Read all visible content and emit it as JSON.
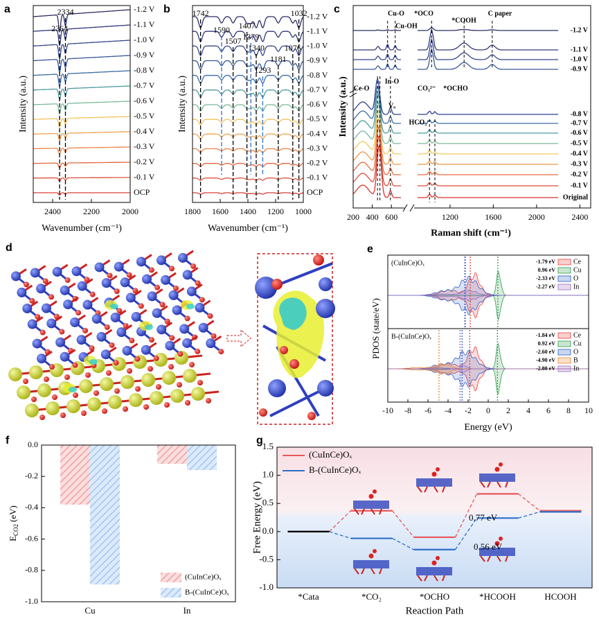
{
  "chart_data": [
    {
      "type": "ir_spectra",
      "panel": "a",
      "xlabel": "Wavenumber (cm⁻¹)",
      "ylabel": "Intensity (a.u.)",
      "xlim": [
        2500,
        2000
      ],
      "xticks": [
        2400,
        2200,
        2000
      ],
      "peaks": [
        2364,
        2334
      ],
      "curves": [
        {
          "name": "-1.2 V",
          "color": "#2c2a66"
        },
        {
          "name": "-1.1 V",
          "color": "#30367a"
        },
        {
          "name": "-1.0 V",
          "color": "#35458c"
        },
        {
          "name": "-0.9 V",
          "color": "#37579a"
        },
        {
          "name": "-0.8 V",
          "color": "#3a6aa6"
        },
        {
          "name": "-0.7 V",
          "color": "#4e9aa3"
        },
        {
          "name": "-0.6 V",
          "color": "#7ab99a"
        },
        {
          "name": "-0.5 V",
          "color": "#f3c35e"
        },
        {
          "name": "-0.4 V",
          "color": "#f0a24f"
        },
        {
          "name": "-0.3 V",
          "color": "#eb8446"
        },
        {
          "name": "-0.2 V",
          "color": "#e4653e"
        },
        {
          "name": "-0.1 V",
          "color": "#de503a"
        },
        {
          "name": "OCP",
          "color": "#d93c36"
        }
      ]
    },
    {
      "type": "ir_spectra",
      "panel": "b",
      "xlabel": "Wavenumber (cm⁻¹)",
      "ylabel": "Intensity (a.u.)",
      "xlim": [
        1800,
        1000
      ],
      "xticks": [
        1800,
        1600,
        1400,
        1200,
        1000
      ],
      "peaks": [
        1742,
        1507,
        1407,
        1340,
        1181,
        1076,
        1032
      ],
      "peaks_alt": [
        1590,
        1379,
        1293
      ],
      "peaks_alt_color": "#2f6fc0",
      "curves": [
        {
          "name": "-1.2 V",
          "color": "#2c2a66"
        },
        {
          "name": "-1.1 V",
          "color": "#30367a"
        },
        {
          "name": "-1.0 V",
          "color": "#35458c"
        },
        {
          "name": "-0.9 V",
          "color": "#37579a"
        },
        {
          "name": "-0.8 V",
          "color": "#3a6aa6"
        },
        {
          "name": "-0.7 V",
          "color": "#4e9aa3"
        },
        {
          "name": "-0.6 V",
          "color": "#7ab99a"
        },
        {
          "name": "-0.5 V",
          "color": "#f3c35e"
        },
        {
          "name": "-0.4 V",
          "color": "#f0a24f"
        },
        {
          "name": "-0.3 V",
          "color": "#eb8446"
        },
        {
          "name": "-0.2 V",
          "color": "#e4653e"
        },
        {
          "name": "-0.1 V",
          "color": "#de503a"
        },
        {
          "name": "OCP",
          "color": "#d93c36"
        }
      ]
    },
    {
      "type": "raman_spectra",
      "panel": "c",
      "xlabel": "Raman shift (cm⁻¹)",
      "ylabel": "Intensity (a.u.)",
      "xlim": [
        200,
        700
      ],
      "x2lim": [
        900,
        2500
      ],
      "xticks": [
        200,
        400,
        600,
        1200,
        1600,
        2000,
        2400
      ],
      "annotations": [
        {
          "text": "Cu-O",
          "color": "#000000"
        },
        {
          "text": "Cu-OH",
          "color": "#000000"
        },
        {
          "text": "*OCO",
          "color": "#2f6fc0"
        },
        {
          "text": "*COOH",
          "color": "#2f6fc0"
        },
        {
          "text": "C paper",
          "color": "#000000"
        },
        {
          "text": "Ce-O",
          "color": "#e8742c"
        },
        {
          "text": "In-O",
          "color": "#000000"
        },
        {
          "text": "CO₃²⁻",
          "color": "#000000"
        },
        {
          "text": "*OCHO",
          "color": "#d8322e"
        },
        {
          "text": "HCO₃⁻",
          "color": "#000000"
        },
        {
          "text": "Vₒ",
          "color": "#e8742c"
        }
      ],
      "curves_top": [
        {
          "name": "-1.2 V",
          "color": "#2c2a66"
        },
        {
          "name": "-1.1 V",
          "color": "#30367a"
        },
        {
          "name": "-1.0 V",
          "color": "#35458c"
        },
        {
          "name": "-0.9 V",
          "color": "#37579a"
        }
      ],
      "curves_bottom": [
        {
          "name": "-0.8 V",
          "color": "#2e3f8f"
        },
        {
          "name": "-0.7 V",
          "color": "#3a6aa8"
        },
        {
          "name": "-0.6 V",
          "color": "#4f9aa0"
        },
        {
          "name": "-0.5 V",
          "color": "#7bb99a"
        },
        {
          "name": "-0.4 V",
          "color": "#f4c75e"
        },
        {
          "name": "-0.3 V",
          "color": "#ee9648"
        },
        {
          "name": "-0.2 V",
          "color": "#e56a3e"
        },
        {
          "name": "-0.1 V",
          "color": "#df4b3a"
        },
        {
          "name": "Original",
          "color": "#d8322e"
        }
      ]
    },
    {
      "type": "structure",
      "panel": "d"
    },
    {
      "type": "pdos",
      "panel": "e",
      "xlabel": "Energy (eV)",
      "ylabel": "PDOS (state/eV)",
      "xlim": [
        -10,
        10
      ],
      "xticks": [
        -10,
        -8,
        -6,
        -4,
        -2,
        0,
        2,
        4,
        6,
        8,
        10
      ],
      "subplots": [
        {
          "title": "(CuInCe)Oₓ",
          "series": [
            {
              "name": "Ce",
              "color": "#e8413c",
              "center": -1.79,
              "center_label": "-1.79 eV"
            },
            {
              "name": "Cu",
              "color": "#2a9d4a",
              "center": 0.96,
              "center_label": "0.96 eV"
            },
            {
              "name": "O",
              "color": "#2a5ec8",
              "center": -2.33,
              "center_label": "-2.33 eV"
            },
            {
              "name": "In",
              "color": "#9a6cc0",
              "center": -2.27,
              "center_label": "-2.27 eV"
            }
          ]
        },
        {
          "title": "B-(CuInCe)Oₓ",
          "series": [
            {
              "name": "Ce",
              "color": "#e8413c",
              "center": -1.84,
              "center_label": "-1.84 eV"
            },
            {
              "name": "Cu",
              "color": "#2a9d4a",
              "center": 0.92,
              "center_label": "0.92 eV"
            },
            {
              "name": "O",
              "color": "#2a5ec8",
              "center": -2.6,
              "center_label": "-2.60 eV"
            },
            {
              "name": "B",
              "color": "#e8842c",
              "center": -4.9,
              "center_label": "-4.90 eV"
            },
            {
              "name": "In",
              "color": "#9a6cc0",
              "center": -2.8,
              "center_label": "-2.80 eV"
            }
          ]
        }
      ]
    },
    {
      "type": "bar",
      "panel": "f",
      "ylabel": "E",
      "ylabel_sub": "CO2",
      "ylabel_unit": "(eV)",
      "categories": [
        "Cu",
        "In"
      ],
      "ylim": [
        -1.0,
        0.0
      ],
      "yticks": [
        {
          "value": -1.0,
          "label": "-1.0"
        },
        -0.8,
        -0.6,
        -0.4,
        -0.2,
        {
          "value": 0,
          "label": "0.0"
        }
      ],
      "legend": "lower right",
      "series": [
        {
          "name": "(CuInCe)Oₓ",
          "color": "#e8686c",
          "values": [
            -0.38,
            -0.12
          ]
        },
        {
          "name": "B-(CuInCe)Oₓ",
          "color": "#6ea6e8",
          "values": [
            -0.89,
            -0.16
          ]
        }
      ]
    },
    {
      "type": "energy_diagram",
      "panel": "g",
      "xlabel": "Reaction Path",
      "ylabel": "Free Energy (eV)",
      "categories": [
        "*Cata",
        "*CO₂",
        "*OCHO",
        "*HCOOH",
        "HCOOH"
      ],
      "ylim": [
        -1.0,
        1.5
      ],
      "yticks": [
        {
          "value": -1.0,
          "label": "-1.0"
        },
        -0.5,
        {
          "value": 0,
          "label": "0.0"
        },
        0.5,
        {
          "value": 1.0,
          "label": "1.0"
        },
        1.5
      ],
      "start_color": "#000000",
      "legend": "upper left",
      "annotations": [
        "0.77 eV",
        "0.56 eV"
      ],
      "series": [
        {
          "name": "(CuInCe)Oₓ",
          "color": "#e8585a",
          "values": [
            0,
            0.37,
            -0.1,
            0.67,
            0.37
          ]
        },
        {
          "name": "B-(CuInCe)Oₓ",
          "color": "#2f6fc8",
          "values": [
            0,
            -0.12,
            -0.32,
            0.24,
            0.35
          ]
        }
      ]
    }
  ]
}
